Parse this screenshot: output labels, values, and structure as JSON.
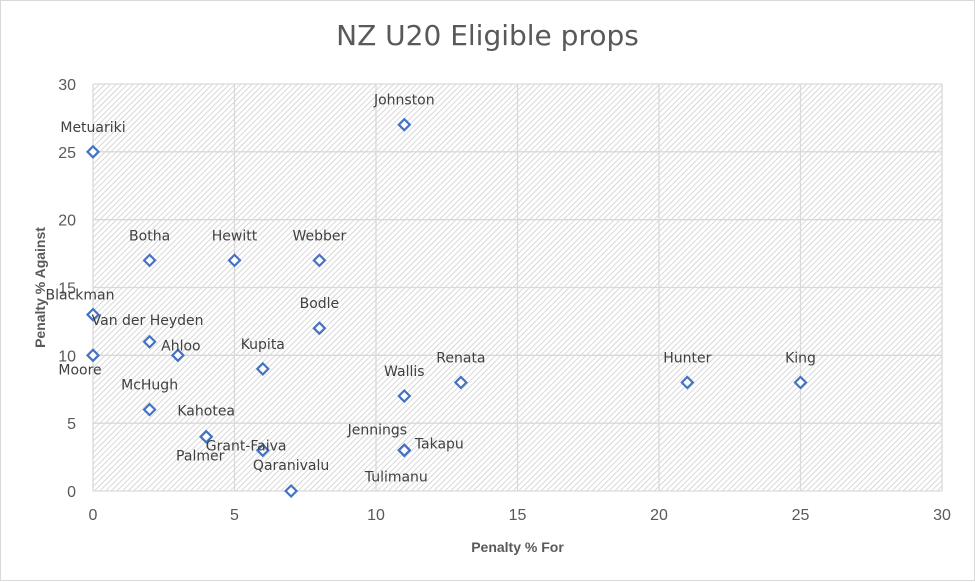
{
  "chart_data": {
    "type": "scatter",
    "title": "NZ U20 Eligible props",
    "xlabel": "Penalty % For",
    "ylabel": "Penalty % Against",
    "xlim": [
      0,
      30
    ],
    "ylim": [
      0,
      30
    ],
    "x_ticks": [
      0,
      5,
      10,
      15,
      20,
      25,
      30
    ],
    "y_ticks": [
      0,
      5,
      10,
      15,
      20,
      25,
      30
    ],
    "grid": true,
    "marker": "diamond-open",
    "marker_color": "#4472c4",
    "points": [
      {
        "name": "Metuariki",
        "x": 0,
        "y": 25
      },
      {
        "name": "Johnston",
        "x": 11,
        "y": 27
      },
      {
        "name": "Botha",
        "x": 2,
        "y": 17
      },
      {
        "name": "Hewitt",
        "x": 5,
        "y": 17
      },
      {
        "name": "Webber",
        "x": 8,
        "y": 17
      },
      {
        "name": "Blackman",
        "x": 0,
        "y": 13
      },
      {
        "name": "Bodle",
        "x": 8,
        "y": 12
      },
      {
        "name": "Van der Heyden",
        "x": 2,
        "y": 11
      },
      {
        "name": "Ahloo",
        "x": 3,
        "y": 10
      },
      {
        "name": "Moore",
        "x": 0,
        "y": 10
      },
      {
        "name": "Kupita",
        "x": 6,
        "y": 9
      },
      {
        "name": "Renata",
        "x": 13,
        "y": 8
      },
      {
        "name": "Hunter",
        "x": 21,
        "y": 8
      },
      {
        "name": "King",
        "x": 25,
        "y": 8
      },
      {
        "name": "Wallis",
        "x": 11,
        "y": 7
      },
      {
        "name": "McHugh",
        "x": 2,
        "y": 6
      },
      {
        "name": "Kahotea",
        "x": 4,
        "y": 4
      },
      {
        "name": "Grant-Faiva",
        "x": 6,
        "y": 3
      },
      {
        "name": "Palmer",
        "x": 4,
        "y": 4
      },
      {
        "name": "Jennings",
        "x": 11,
        "y": 3
      },
      {
        "name": "Takapu",
        "x": 11,
        "y": 3
      },
      {
        "name": "Tulimanu",
        "x": 11,
        "y": 3
      },
      {
        "name": "Qaranivalu",
        "x": 7,
        "y": 0
      }
    ]
  }
}
